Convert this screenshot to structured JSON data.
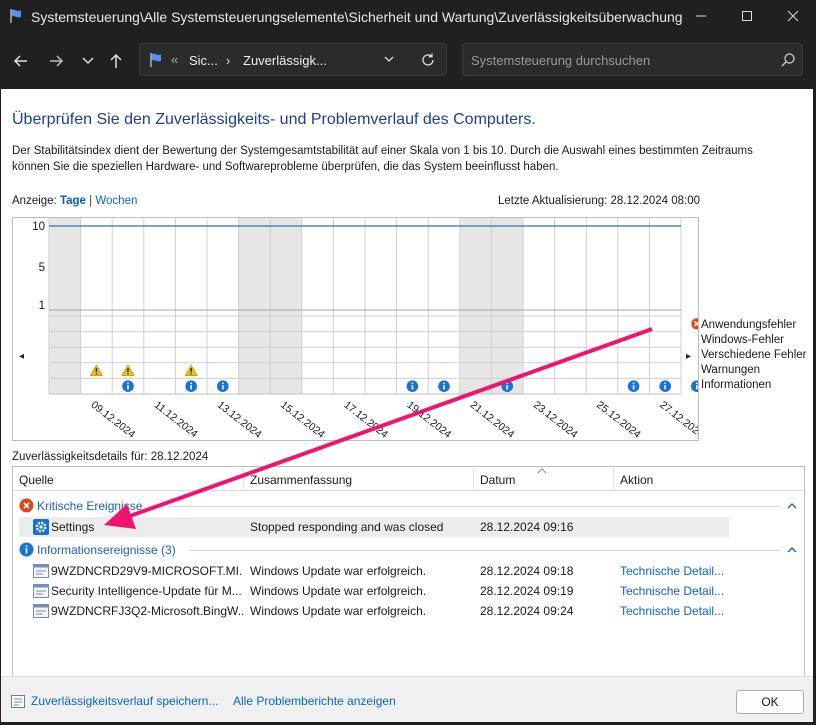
{
  "window": {
    "title": "Systemsteuerung\\Alle Systemsteuerungselemente\\Sicherheit und Wartung\\Zuverlässigkeitsüberwachung"
  },
  "address": {
    "seg1": "Sic...",
    "seg2": "Zuverlässigk...",
    "overflow": "«"
  },
  "search": {
    "placeholder": "Systemsteuerung durchsuchen"
  },
  "page": {
    "heading": "Überprüfen Sie den Zuverlässigkeits- und Problemverlauf des Computers.",
    "description": "Der Stabilitätsindex dient der Bewertung der Systemgesamtstabilität auf einer Skala von 1 bis 10. Durch die Auswahl eines bestimmten Zeitraums können Sie die speziellen Hardware- und Softwareprobleme überprüfen, die das System beeinflusst haben.",
    "view_label": "Anzeige:",
    "view_days": "Tage",
    "view_sep": "|",
    "view_weeks": "Wochen",
    "last_update": "Letzte Aktualisierung: 28.12.2024 08:00",
    "details_label": "Zuverlässigkeitsdetails für: 28.12.2024"
  },
  "chart_data": {
    "type": "table",
    "y_ticks": [
      "10",
      "5",
      "1"
    ],
    "stability_index": 10,
    "dates": [
      "09.12.2024",
      "11.12.2024",
      "13.12.2024",
      "15.12.2024",
      "17.12.2024",
      "19.12.2024",
      "21.12.2024",
      "23.12.2024",
      "25.12.2024",
      "27.12.2024"
    ],
    "first_day": "08.12.2024",
    "day_count": 20,
    "selected_day": "28.12.2024",
    "weekend_days": [
      "08.12.2024",
      "14.12.2024",
      "15.12.2024",
      "21.12.2024",
      "22.12.2024",
      "28.12.2024"
    ],
    "rows": [
      "Anwendungsfehler",
      "Windows-Fehler",
      "Verschiedene Fehler",
      "Warnungen",
      "Informationen"
    ],
    "events": {
      "Anwendungsfehler": [
        "28.12.2024"
      ],
      "Warnungen": [
        "09.12.2024",
        "10.12.2024",
        "12.12.2024"
      ],
      "Informationen": [
        "10.12.2024",
        "12.12.2024",
        "13.12.2024",
        "19.12.2024",
        "20.12.2024",
        "22.12.2024",
        "26.12.2024",
        "27.12.2024",
        "28.12.2024"
      ]
    }
  },
  "grid": {
    "columns": [
      "Quelle",
      "Zusammenfassung",
      "Datum",
      "Aktion"
    ],
    "critical_group": "Kritische Ereignisse",
    "info_group": "Informationsereignisse (3)",
    "critical_rows": [
      {
        "source": "Settings",
        "summary": "Stopped responding and was closed",
        "date": "28.12.2024 09:16",
        "action": ""
      }
    ],
    "info_rows": [
      {
        "source": "9WZDNCRD29V9-MICROSOFT.MI...",
        "summary": "Windows Update war erfolgreich.",
        "date": "28.12.2024 09:18",
        "action": "Technische Detail..."
      },
      {
        "source": "Security Intelligence-Update für M...",
        "summary": "Windows Update war erfolgreich.",
        "date": "28.12.2024 09:19",
        "action": "Technische Detail..."
      },
      {
        "source": "9WZDNCRFJ3Q2-Microsoft.BingW...",
        "summary": "Windows Update war erfolgreich.",
        "date": "28.12.2024 09:24",
        "action": "Technische Detail..."
      }
    ]
  },
  "footer": {
    "save_link": "Zuverlässigkeitsverlauf speichern...",
    "reports_link": "Alle Problemberichte anzeigen",
    "ok": "OK"
  },
  "colors": {
    "accent": "#0a63c9",
    "heading": "#1e3f8f",
    "arrow": "#f0136f",
    "error": "#d9481c",
    "warning": "#f2c200",
    "info": "#1a73d1"
  }
}
